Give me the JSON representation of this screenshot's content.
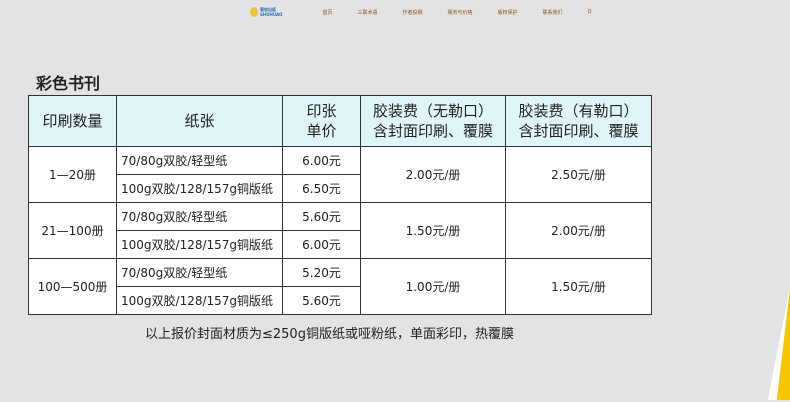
{
  "nav": {
    "logo_text": [
      "蜀和出版",
      "SHUHUAO"
    ],
    "items": [
      "首页",
      "三联术语",
      "作者投稿",
      "服务与价格",
      "版权保护",
      "联系我们",
      "Q"
    ]
  },
  "title": "彩色书刊",
  "table": {
    "headers": [
      "印刷数量",
      "纸张",
      "印张\n单价",
      "胶装费（无勒口）\n含封面印刷、覆膜",
      "胶装费（有勒口）\n含封面印刷、覆膜"
    ],
    "groups": [
      {
        "qty": "1—20册",
        "rows": [
          {
            "paper": "70/80g双胶/轻型纸",
            "price": "6.00元"
          },
          {
            "paper": "100g双胶/128/157g铜版纸",
            "price": "6.50元"
          }
        ],
        "fee_no_flap": "2.00元/册",
        "fee_flap": "2.50元/册"
      },
      {
        "qty": "21—100册",
        "rows": [
          {
            "paper": "70/80g双胶/轻型纸",
            "price": "5.60元"
          },
          {
            "paper": "100g双胶/128/157g铜版纸",
            "price": "6.00元"
          }
        ],
        "fee_no_flap": "1.50元/册",
        "fee_flap": "2.00元/册"
      },
      {
        "qty": "100—500册",
        "rows": [
          {
            "paper": "70/80g双胶/轻型纸",
            "price": "5.20元"
          },
          {
            "paper": "100g双胶/128/157g铜版纸",
            "price": "5.60元"
          }
        ],
        "fee_no_flap": "1.00元/册",
        "fee_flap": "1.50元/册"
      }
    ]
  },
  "note": "以上报价封面材质为≤250g铜版纸或哑粉纸，单面彩印，热覆膜",
  "colors": {
    "header_bg": "#dff5f8",
    "fan": [
      "#f7c400",
      "#f9a800",
      "#fb8a00",
      "#fb6a00",
      "#f84a10",
      "#f03020",
      "#e02020",
      "#d01a28",
      "#c01830"
    ]
  }
}
